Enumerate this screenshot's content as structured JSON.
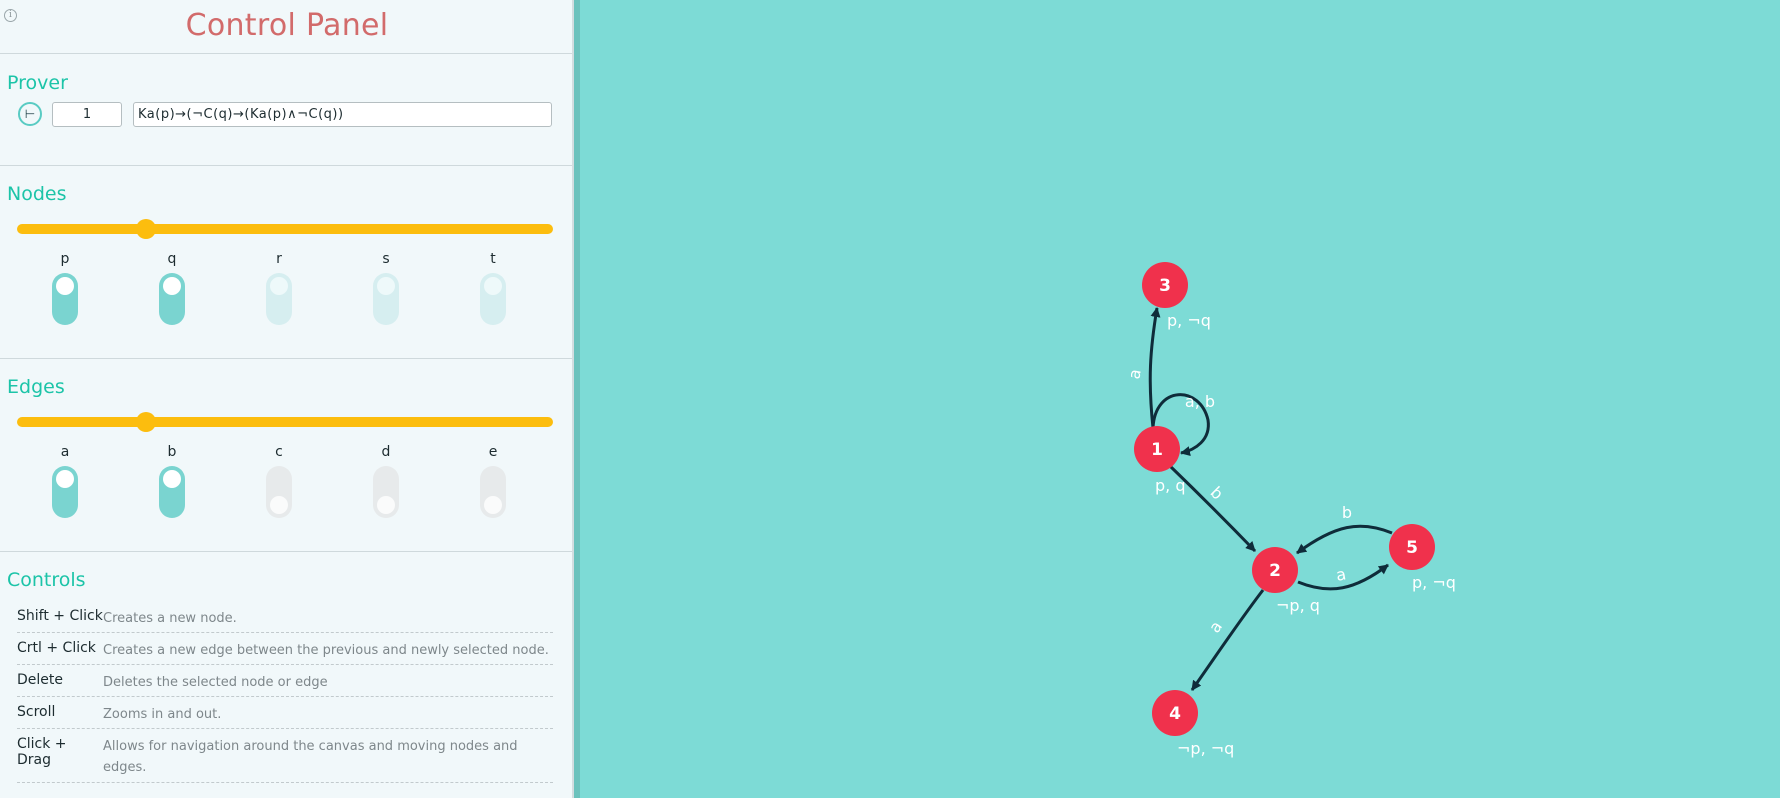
{
  "panel": {
    "title": "Control Panel",
    "info_icon": "info-icon"
  },
  "prover": {
    "title": "Prover",
    "button_symbol": "⊢",
    "node_value": "1",
    "formula_value": "Ka(p)→(¬C(q)→(Ka(p)∧¬C(q))"
  },
  "nodes_section": {
    "title": "Nodes",
    "slider_fraction": 0.24,
    "toggles": [
      {
        "label": "p",
        "on": true
      },
      {
        "label": "q",
        "on": true
      },
      {
        "label": "r",
        "on": false
      },
      {
        "label": "s",
        "on": false
      },
      {
        "label": "t",
        "on": false
      }
    ]
  },
  "edges_section": {
    "title": "Edges",
    "slider_fraction": 0.24,
    "toggles": [
      {
        "label": "a",
        "on": true
      },
      {
        "label": "b",
        "on": true
      },
      {
        "label": "c",
        "on": false
      },
      {
        "label": "d",
        "on": false
      },
      {
        "label": "e",
        "on": false
      }
    ]
  },
  "controls": {
    "title": "Controls",
    "rows": [
      {
        "key": "Shift + Click",
        "desc": "Creates a new node."
      },
      {
        "key": "Crtl + Click",
        "desc": "Creates a new edge between the previous and newly selected node."
      },
      {
        "key": "Delete",
        "desc": "Deletes the selected node or edge"
      },
      {
        "key": "Scroll",
        "desc": "Zooms in and out."
      },
      {
        "key": "Click + Drag",
        "desc": "Allows for navigation around the canvas and moving nodes and edges."
      }
    ]
  },
  "graph": {
    "colors": {
      "background": "#7ddbd6",
      "node": "#f0314c",
      "edge": "#0f2c3a",
      "text": "#ffffff"
    },
    "nodes": [
      {
        "id": "1",
        "label": "1",
        "props": "p, q"
      },
      {
        "id": "2",
        "label": "2",
        "props": "¬p, q"
      },
      {
        "id": "3",
        "label": "3",
        "props": "p, ¬q"
      },
      {
        "id": "4",
        "label": "4",
        "props": "¬p, ¬q"
      },
      {
        "id": "5",
        "label": "5",
        "props": "p, ¬q"
      }
    ],
    "edges": [
      {
        "from": "1",
        "to": "3",
        "label": "a"
      },
      {
        "from": "1",
        "to": "1",
        "label": "a, b"
      },
      {
        "from": "1",
        "to": "2",
        "label": "b"
      },
      {
        "from": "2",
        "to": "5",
        "label": "a"
      },
      {
        "from": "5",
        "to": "2",
        "label": "b"
      },
      {
        "from": "2",
        "to": "4",
        "label": "a"
      }
    ]
  }
}
